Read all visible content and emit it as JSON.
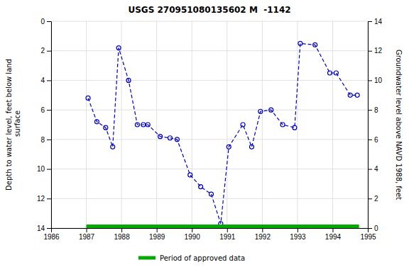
{
  "chart_data": {
    "type": "line",
    "title": "USGS 270951080135602 M  -1142",
    "ylabel": "Depth to water level, feet below land\n surface",
    "y2label": "Groundwater level above NAVD 1988, feet",
    "x": [
      1987.05,
      1987.3,
      1987.55,
      1987.75,
      1987.92,
      1988.2,
      1988.45,
      1988.62,
      1988.75,
      1989.1,
      1989.38,
      1989.58,
      1989.95,
      1990.25,
      1990.55,
      1990.82,
      1991.05,
      1991.45,
      1991.7,
      1991.95,
      1992.25,
      1992.58,
      1992.92,
      1993.08,
      1993.5,
      1993.92,
      1994.1,
      1994.5,
      1994.7
    ],
    "series": [
      {
        "color": "#0000CC",
        "marker": "circle",
        "line_style": "dashed",
        "values": [
          5.2,
          6.8,
          7.2,
          8.5,
          1.8,
          4.0,
          7.0,
          7.0,
          7.0,
          7.8,
          7.9,
          8.0,
          10.4,
          11.2,
          11.7,
          13.7,
          8.5,
          7.0,
          8.5,
          6.1,
          6.0,
          7.0,
          7.2,
          1.5,
          1.6,
          3.5,
          3.5,
          5.0,
          5.0
        ]
      },
      {
        "name": "Period of approved data",
        "color": "#00AA00",
        "type": "line",
        "line_style": "solid",
        "x": [
          1987.0,
          1994.75
        ],
        "values": [
          14.0,
          14.0
        ]
      }
    ],
    "xlim": [
      1986,
      1995
    ],
    "xticks": [
      1986,
      1987,
      1988,
      1989,
      1990,
      1991,
      1992,
      1993,
      1994,
      1995
    ],
    "ylim": [
      14,
      0
    ],
    "yticks": [
      0,
      2,
      4,
      6,
      8,
      10,
      12,
      14
    ],
    "y2lim": [
      0,
      14
    ],
    "y2ticks": [
      0,
      2,
      4,
      6,
      8,
      10,
      12,
      14
    ],
    "grid": true,
    "legend": "bottom"
  }
}
